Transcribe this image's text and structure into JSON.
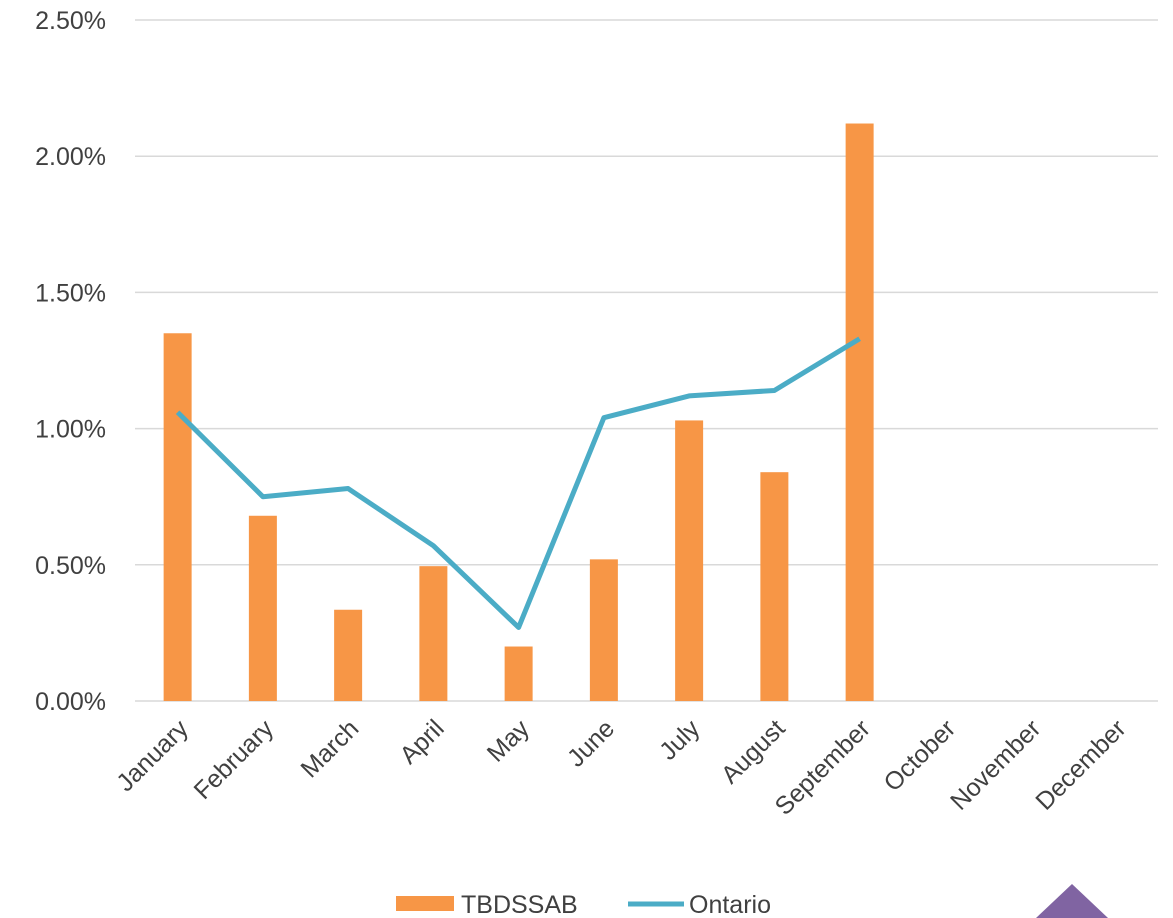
{
  "chart_data": {
    "type": "bar",
    "categories": [
      "January",
      "February",
      "March",
      "April",
      "May",
      "June",
      "July",
      "August",
      "September",
      "October",
      "November",
      "December"
    ],
    "series": [
      {
        "name": "TBDSSAB",
        "type": "bar",
        "values": [
          1.35,
          0.68,
          0.335,
          0.495,
          0.2,
          0.52,
          1.03,
          0.84,
          2.12,
          null,
          null,
          null
        ],
        "color": "#f79646"
      },
      {
        "name": "Ontario",
        "type": "line",
        "values": [
          1.06,
          0.75,
          0.78,
          0.57,
          0.27,
          1.04,
          1.12,
          1.14,
          1.33,
          null,
          null,
          null
        ],
        "color": "#4bacc6"
      }
    ],
    "ylim": [
      0,
      2.5
    ],
    "yticks": [
      0,
      0.5,
      1.0,
      1.5,
      2.0,
      2.5
    ],
    "ytick_labels": [
      "0.00%",
      "0.50%",
      "1.00%",
      "1.50%",
      "2.00%",
      "2.50%"
    ],
    "grid": true,
    "legend_position": "bottom",
    "title": "",
    "xlabel": "",
    "ylabel": ""
  },
  "decoration": {
    "corner_marker": "purple-triangle",
    "corner_color": "#8064a2"
  }
}
